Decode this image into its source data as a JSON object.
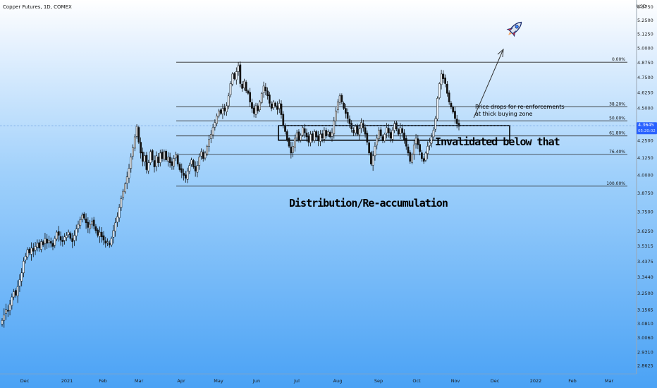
{
  "chart_data": {
    "type": "candlestick",
    "title": "Copper Futures, 1D, COMEX",
    "currency": "USD",
    "x_tick_labels": [
      "Dec",
      "2021",
      "Feb",
      "Mar",
      "Apr",
      "May",
      "Jun",
      "Jul",
      "Aug",
      "Sep",
      "Oct",
      "Nov",
      "Dec",
      "2022",
      "Feb",
      "Mar"
    ],
    "y_tick_labels": [
      "5.3750",
      "5.2500",
      "5.1250",
      "5.0000",
      "4.8750",
      "4.7500",
      "4.6250",
      "4.5000",
      "4.3645",
      "4.2500",
      "4.1250",
      "4.0000",
      "3.8750",
      "3.7500",
      "3.6250",
      "3.5315",
      "3.4375",
      "3.3440",
      "3.2500",
      "3.1565",
      "3.0810",
      "3.0060",
      "2.9310",
      "2.8625"
    ],
    "ylim": [
      2.85,
      5.39
    ],
    "current_price": {
      "value": 4.3645,
      "label": "4.3645",
      "countdown": "05:20:02"
    },
    "fib_levels": [
      {
        "label": "0.00%",
        "price": 4.88
      },
      {
        "label": "38.20%",
        "price": 4.512
      },
      {
        "label": "50.00%",
        "price": 4.402
      },
      {
        "label": "61.80%",
        "price": 4.287
      },
      {
        "label": "76.40%",
        "price": 4.15
      },
      {
        "label": "100.00%",
        "price": 3.925
      }
    ],
    "buying_zone": {
      "price_high": 4.365,
      "price_low": 4.255
    },
    "annotations": {
      "note_line1": "Price drops for re-enforcements",
      "note_line2": "at thick buying zone",
      "invalidated": "Invalidated below that",
      "distribution": "Distribution/Re-accumulation"
    },
    "ohlc_closes": [
      3.1,
      3.13,
      3.16,
      3.15,
      3.19,
      3.23,
      3.26,
      3.24,
      3.29,
      3.33,
      3.37,
      3.44,
      3.47,
      3.51,
      3.49,
      3.52,
      3.5,
      3.53,
      3.55,
      3.52,
      3.56,
      3.54,
      3.58,
      3.55,
      3.57,
      3.55,
      3.53,
      3.58,
      3.62,
      3.6,
      3.57,
      3.56,
      3.59,
      3.6,
      3.62,
      3.58,
      3.56,
      3.6,
      3.64,
      3.67,
      3.7,
      3.73,
      3.71,
      3.68,
      3.65,
      3.67,
      3.69,
      3.66,
      3.63,
      3.6,
      3.62,
      3.59,
      3.57,
      3.55,
      3.56,
      3.54,
      3.58,
      3.63,
      3.68,
      3.72,
      3.78,
      3.84,
      3.89,
      3.94,
      3.99,
      4.05,
      4.13,
      4.2,
      4.28,
      4.36,
      4.24,
      4.16,
      4.1,
      4.14,
      4.04,
      4.09,
      4.17,
      4.11,
      4.06,
      4.14,
      4.09,
      4.16,
      4.12,
      4.17,
      4.11,
      4.13,
      4.09,
      4.07,
      4.12,
      4.15,
      4.08,
      4.04,
      4.02,
      4.0,
      3.98,
      4.03,
      4.07,
      4.11,
      4.06,
      4.03,
      4.07,
      4.13,
      4.17,
      4.12,
      4.16,
      4.21,
      4.26,
      4.3,
      4.35,
      4.39,
      4.44,
      4.48,
      4.46,
      4.5,
      4.48,
      4.52,
      4.6,
      4.7,
      4.78,
      4.74,
      4.8,
      4.85,
      4.7,
      4.66,
      4.72,
      4.64,
      4.62,
      4.55,
      4.5,
      4.46,
      4.52,
      4.48,
      4.55,
      4.62,
      4.68,
      4.64,
      4.6,
      4.54,
      4.5,
      4.55,
      4.52,
      4.49,
      4.54,
      4.45,
      4.37,
      4.32,
      4.26,
      4.21,
      4.16,
      4.21,
      4.27,
      4.31,
      4.26,
      4.29,
      4.35,
      4.31,
      4.28,
      4.24,
      4.3,
      4.26,
      4.32,
      4.28,
      4.25,
      4.3,
      4.27,
      4.33,
      4.29,
      4.32,
      4.28,
      4.31,
      4.4,
      4.48,
      4.55,
      4.6,
      4.55,
      4.5,
      4.46,
      4.42,
      4.38,
      4.34,
      4.31,
      4.36,
      4.3,
      4.34,
      4.39,
      4.35,
      4.3,
      4.24,
      4.16,
      4.08,
      4.14,
      4.21,
      4.27,
      4.33,
      4.29,
      4.25,
      4.3,
      4.35,
      4.31,
      4.27,
      4.33,
      4.38,
      4.34,
      4.3,
      4.35,
      4.31,
      4.26,
      4.21,
      4.16,
      4.1,
      4.15,
      4.22,
      4.27,
      4.22,
      4.17,
      4.12,
      4.1,
      4.16,
      4.21,
      4.24,
      4.28,
      4.33,
      4.42,
      4.58,
      4.7,
      4.78,
      4.74,
      4.7,
      4.62,
      4.55,
      4.51,
      4.47,
      4.42,
      4.38,
      4.36
    ]
  }
}
